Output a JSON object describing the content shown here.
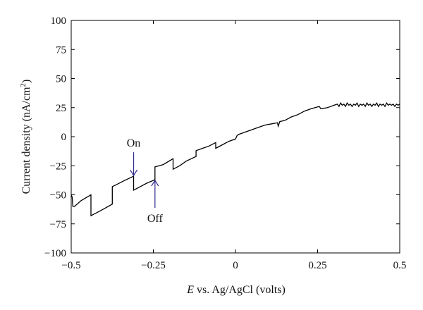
{
  "chart_data": {
    "type": "line",
    "title": "",
    "xlabel_italic": "E",
    "xlabel_rest": " vs. Ag/AgCl (volts)",
    "ylabel_main": "Current density (nA/cm",
    "ylabel_sup": "2",
    "ylabel_close": ")",
    "xlim": [
      -0.5,
      0.5
    ],
    "ylim": [
      -100,
      100
    ],
    "x_ticks": [
      -0.5,
      -0.25,
      0,
      0.25,
      0.5
    ],
    "x_tick_labels": [
      "−0.5",
      "−0.25",
      "0",
      "0.25",
      "0.5"
    ],
    "y_ticks": [
      100,
      75,
      50,
      25,
      0,
      -25,
      -50,
      -75,
      -100
    ],
    "y_tick_labels": [
      "100",
      "75",
      "50",
      "25",
      "0",
      "−25",
      "−50",
      "−75",
      "−100"
    ],
    "grid": false,
    "line_color": "#000000",
    "arrow_color": "#2e2a8c",
    "series": [
      {
        "x": [
          -0.5,
          -0.497,
          -0.495,
          -0.49,
          -0.47,
          -0.44,
          -0.44,
          -0.42,
          -0.4,
          -0.375,
          -0.375,
          -0.36,
          -0.34,
          -0.31,
          -0.31,
          -0.29,
          -0.27,
          -0.245,
          -0.245,
          -0.22,
          -0.19,
          -0.19,
          -0.17,
          -0.15,
          -0.12,
          -0.12,
          -0.1,
          -0.08,
          -0.06,
          -0.06,
          -0.04,
          -0.02,
          0.0,
          0.005,
          0.01,
          0.03,
          0.05,
          0.07,
          0.09,
          0.11,
          0.128,
          0.13,
          0.135,
          0.15,
          0.17,
          0.19,
          0.21,
          0.23,
          0.255,
          0.26,
          0.28,
          0.3,
          0.31,
          0.315,
          0.32,
          0.325,
          0.33,
          0.335,
          0.34,
          0.345,
          0.35,
          0.355,
          0.36,
          0.365,
          0.37,
          0.375,
          0.38,
          0.385,
          0.39,
          0.395,
          0.4,
          0.405,
          0.41,
          0.415,
          0.42,
          0.425,
          0.43,
          0.435,
          0.44,
          0.445,
          0.45,
          0.455,
          0.46,
          0.465,
          0.47,
          0.475,
          0.48,
          0.485,
          0.49,
          0.495,
          0.5
        ],
        "y": [
          -50,
          -52,
          -60,
          -60,
          -55,
          -50,
          -68,
          -65,
          -62,
          -58,
          -43,
          -41,
          -38,
          -34,
          -46,
          -43,
          -40,
          -37,
          -26,
          -24,
          -19,
          -28,
          -25,
          -21,
          -17,
          -12,
          -10,
          -8,
          -5,
          -10,
          -7,
          -4,
          -2,
          1,
          2,
          4,
          6,
          8,
          10,
          11,
          12,
          9,
          13,
          14,
          17,
          19,
          22,
          24,
          26,
          24,
          25,
          27,
          28,
          26,
          29,
          27,
          28,
          26,
          29,
          27,
          28,
          26,
          28,
          27,
          29,
          26,
          28,
          27,
          28,
          26,
          29,
          27,
          28,
          26,
          28,
          27,
          29,
          26,
          28,
          27,
          28,
          26,
          29,
          27,
          28,
          27,
          28,
          26,
          28,
          27,
          28
        ]
      }
    ],
    "annotations": [
      {
        "label": "On",
        "x": -0.31,
        "y": -34,
        "direction": "down"
      },
      {
        "label": "Off",
        "x": -0.245,
        "y": -37,
        "direction": "up"
      }
    ]
  }
}
